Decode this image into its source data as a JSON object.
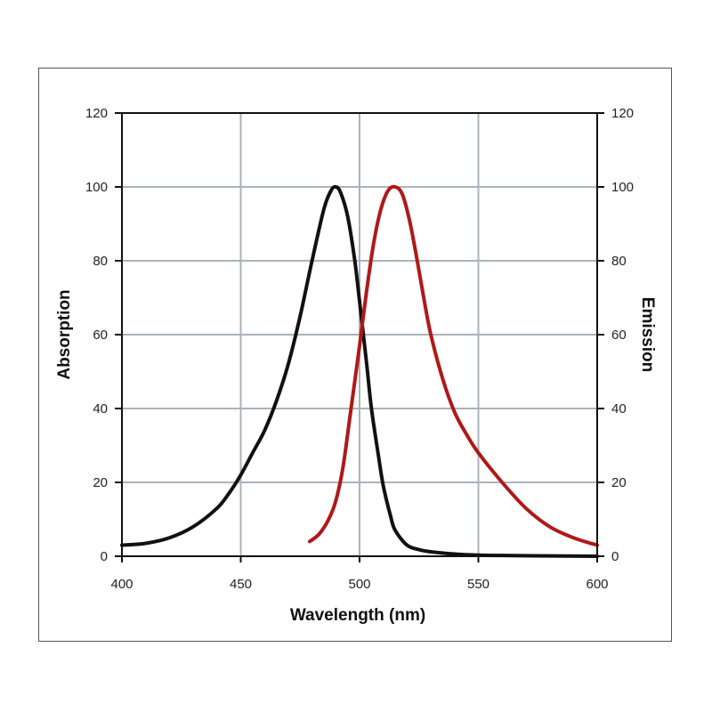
{
  "chart_data": {
    "type": "line",
    "xlabel": "Wavelength (nm)",
    "ylabel": "Absorption",
    "y2label": "Emission",
    "xlim": [
      400,
      600
    ],
    "ylim": [
      0,
      120
    ],
    "y2lim": [
      0,
      120
    ],
    "x_ticks": [
      "400",
      "450",
      "500",
      "550",
      "600"
    ],
    "y_ticks": [
      "0",
      "20",
      "40",
      "60",
      "80",
      "100",
      "120"
    ],
    "y2_ticks": [
      "0",
      "20",
      "40",
      "60",
      "80",
      "100",
      "120"
    ],
    "grid": true,
    "series": [
      {
        "color": "#111111",
        "axis": "left",
        "x": [
          400,
          410,
          420,
          430,
          440,
          445,
          450,
          455,
          460,
          465,
          470,
          475,
          480,
          485,
          488,
          490,
          492,
          495,
          498,
          500,
          503,
          505,
          508,
          510,
          513,
          515,
          520,
          525,
          530,
          540,
          550,
          560,
          580,
          600
        ],
        "y": [
          3,
          3.5,
          5,
          8,
          13,
          17,
          22,
          28,
          34,
          42,
          52,
          65,
          80,
          94,
          99,
          100,
          98.5,
          92,
          80,
          69,
          52,
          40,
          27,
          19,
          11,
          7,
          3,
          1.8,
          1.2,
          0.6,
          0.3,
          0.2,
          0.1,
          0
        ]
      },
      {
        "color": "#b01818",
        "axis": "right",
        "x": [
          479,
          483,
          487,
          490,
          493,
          496,
          500,
          503,
          506,
          509,
          512,
          515,
          518,
          521,
          524,
          527,
          530,
          535,
          540,
          545,
          550,
          560,
          570,
          580,
          590,
          600
        ],
        "y": [
          4,
          6,
          10,
          15,
          24,
          38,
          57,
          72,
          85,
          94,
          99,
          100,
          98,
          91,
          81,
          70,
          60,
          48,
          39,
          33,
          28,
          20,
          13,
          8,
          5,
          3
        ]
      }
    ]
  }
}
